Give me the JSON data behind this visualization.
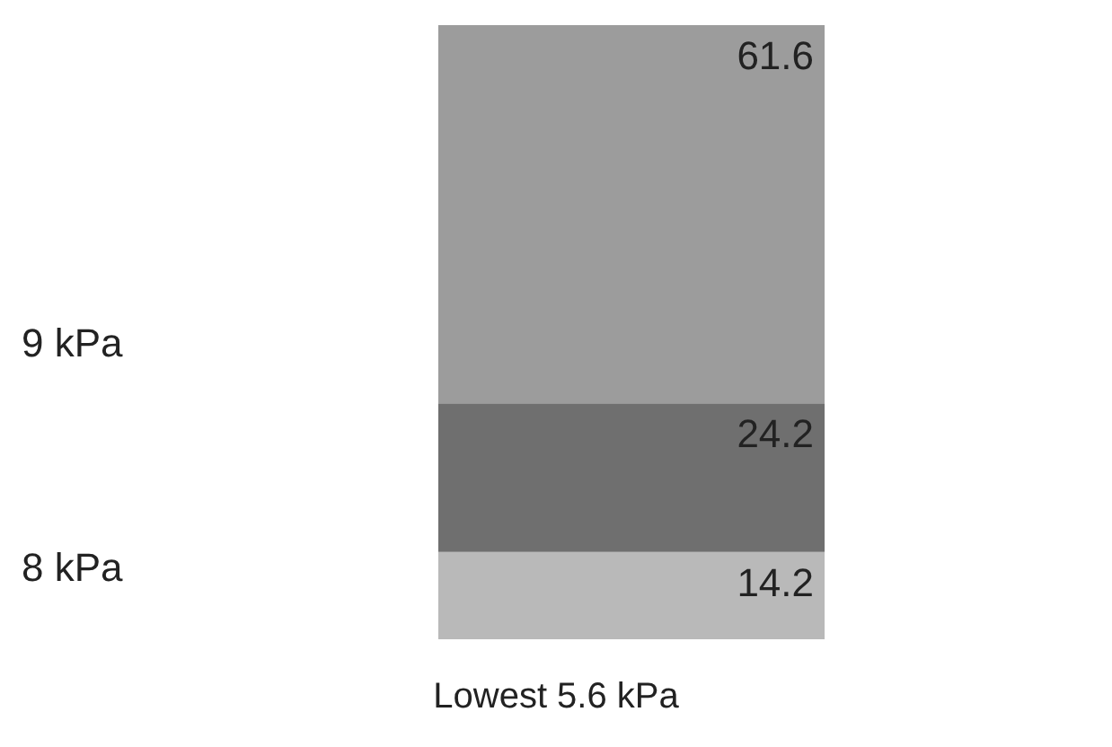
{
  "chart_data": {
    "type": "bar",
    "stacked": true,
    "data_labels": true,
    "categories": [
      null
    ],
    "series": [
      {
        "color": "#b9b9b9",
        "values": [
          14.2
        ]
      },
      {
        "color": "#6f6f6f",
        "values": [
          24.2
        ]
      },
      {
        "color": "#9c9c9c",
        "values": [
          61.6
        ]
      }
    ],
    "annotations": [
      "9 kPa",
      "8 kPa",
      "Lowest 5.6 kPa"
    ]
  }
}
